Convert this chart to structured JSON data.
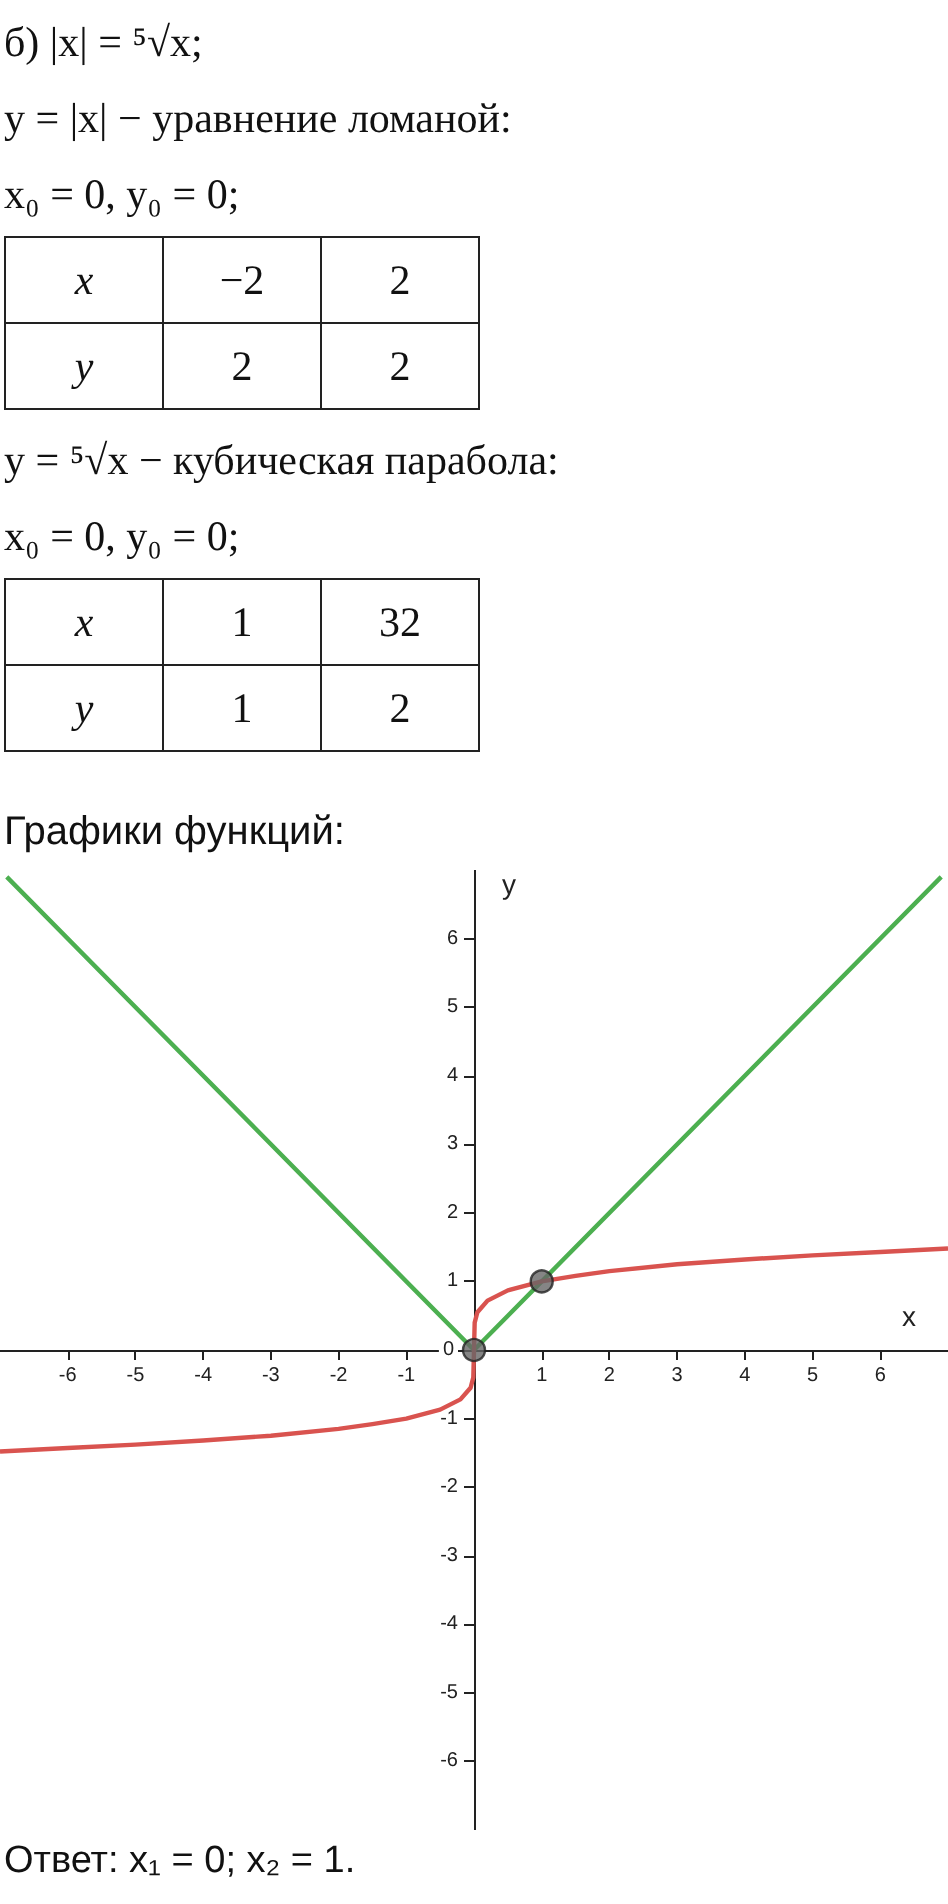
{
  "chart_data": {
    "type": "line",
    "title": "Графики функций:",
    "xlabel": "x",
    "ylabel": "y",
    "annotations": [
      "б) |x| = ⁵√x;",
      "y = |x| − уравнение ломаной:",
      "x₀ = 0,  y₀ = 0;",
      "x",
      "−2",
      "2",
      "y",
      "2",
      "2",
      "y = ⁵√x − кубическая парабола:",
      "x₀ = 0,  y₀ = 0;",
      "x",
      "1",
      "32",
      "y",
      "1",
      "2",
      "Ответ: x₁ = 0; x₂ = 1."
    ],
    "xlim": [
      -7,
      7
    ],
    "ylim": [
      -7,
      7
    ],
    "xticks": [
      -6,
      -5,
      -4,
      -3,
      -2,
      -1,
      {
        "value": 0,
        "label": null
      },
      1,
      2,
      3,
      4,
      5,
      6
    ],
    "yticks": [
      -6,
      -5,
      -4,
      -3,
      -2,
      -1,
      0,
      1,
      2,
      3,
      4,
      5,
      6
    ],
    "series": [
      {
        "color": "#4caf50",
        "x": [
          -6.9,
          0,
          6.9
        ],
        "values": [
          6.9,
          0,
          6.9
        ]
      },
      {
        "color": "#d9534f",
        "x": [
          -7,
          -6,
          -5,
          -4,
          -3,
          -2,
          -1.5,
          -1,
          -0.5,
          -0.2,
          -0.05,
          -0.01,
          0,
          0.01,
          0.05,
          0.2,
          0.5,
          1,
          1.5,
          2,
          3,
          4,
          5,
          6,
          7
        ],
        "values": [
          -1.48,
          -1.43,
          -1.38,
          -1.32,
          -1.25,
          -1.15,
          -1.08,
          -1,
          -0.87,
          -0.72,
          -0.55,
          -0.4,
          0,
          0.4,
          0.55,
          0.72,
          0.87,
          1,
          1.08,
          1.15,
          1.25,
          1.32,
          1.38,
          1.43,
          1.48
        ]
      },
      {
        "type": "scatter",
        "marker": "circle",
        "color": "#666666",
        "x": [
          0,
          1
        ],
        "values": [
          0,
          1
        ]
      }
    ]
  }
}
